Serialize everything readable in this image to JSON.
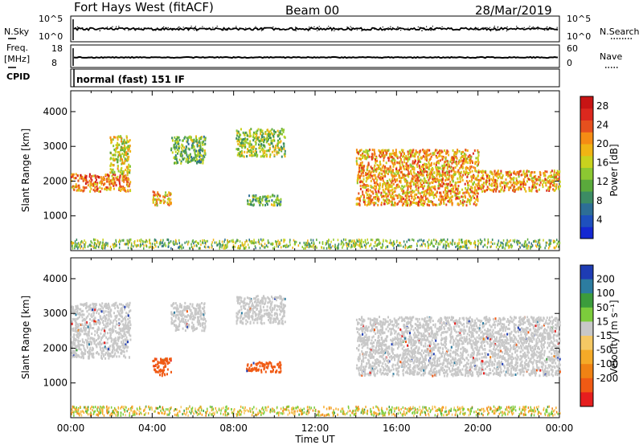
{
  "header": {
    "radar_title": "Fort Hays West (fitACF)",
    "beam": "Beam 00",
    "date": "28/Mar/2019"
  },
  "noise_panel": {
    "left_label": "N.Sky",
    "right_label": "N.Search",
    "left_ticks": [
      "10^5",
      "10^0"
    ],
    "right_ticks": [
      "10^5",
      "10^0"
    ]
  },
  "freq_panel": {
    "left_label_1": "Freq.",
    "left_label_2": "[MHz]",
    "right_label": "Nave",
    "left_ticks": [
      "18",
      "8"
    ],
    "right_ticks": [
      "60",
      "0"
    ],
    "cpid_label": "CPID"
  },
  "cpid": {
    "text": "normal (fast) 151 IF"
  },
  "x_axis": {
    "title": "Time UT",
    "ticks": [
      "00:00",
      "04:00",
      "08:00",
      "12:00",
      "16:00",
      "20:00",
      "00:00"
    ]
  },
  "colors": {
    "power": [
      "#1428d2",
      "#1e50be",
      "#2d6e96",
      "#3c8c64",
      "#5aaa3c",
      "#8cc832",
      "#c8d21e",
      "#f0b414",
      "#f58c14",
      "#e6501e",
      "#dc281e",
      "#c81414"
    ],
    "velocity_neg": [
      "#e61e1e",
      "#f05a14",
      "#f08214",
      "#f5aa28",
      "#f5c864"
    ],
    "velocity_gs": "#c8c8c8",
    "velocity_pos": [
      "#7ccc3c",
      "#3c9c3c",
      "#2c7ca0",
      "#1e3cb4"
    ]
  },
  "chart_data": [
    {
      "type": "heatmap",
      "name": "Power",
      "ylabel": "Slant Range [km]",
      "xlabel": "",
      "x_range_hours": [
        0,
        24
      ],
      "ylim": [
        0,
        4600
      ],
      "y_ticks": [
        1000,
        2000,
        3000,
        4000
      ],
      "colorbar": {
        "label": "Power [dB]",
        "ticks": [
          4,
          8,
          12,
          16,
          20,
          24,
          28
        ],
        "range": [
          0,
          30
        ]
      },
      "echo_regions": [
        {
          "t_start": 0.0,
          "t_end": 2.9,
          "range_start_km": 1700,
          "range_end_km": 2200,
          "value": 22
        },
        {
          "t_start": 1.9,
          "t_end": 2.9,
          "range_start_km": 2200,
          "range_end_km": 3300,
          "value": 16
        },
        {
          "t_start": 4.0,
          "t_end": 4.9,
          "range_start_km": 1300,
          "range_end_km": 1700,
          "value": 20
        },
        {
          "t_start": 4.9,
          "t_end": 6.6,
          "range_start_km": 2500,
          "range_end_km": 3300,
          "value": 12
        },
        {
          "t_start": 8.1,
          "t_end": 10.5,
          "range_start_km": 2700,
          "range_end_km": 3500,
          "value": 14
        },
        {
          "t_start": 8.6,
          "t_end": 10.3,
          "range_start_km": 1300,
          "range_end_km": 1600,
          "value": 12
        },
        {
          "t_start": 14.0,
          "t_end": 20.0,
          "range_start_km": 1300,
          "range_end_km": 2900,
          "value": 20
        },
        {
          "t_start": 20.0,
          "t_end": 24.0,
          "range_start_km": 1700,
          "range_end_km": 2300,
          "value": 20
        }
      ]
    },
    {
      "type": "heatmap",
      "name": "Velocity",
      "ylabel": "Slant Range [km]",
      "xlabel": "Time UT",
      "x_range_hours": [
        0,
        24
      ],
      "ylim": [
        0,
        4600
      ],
      "y_ticks": [
        1000,
        2000,
        3000,
        4000
      ],
      "colorbar": {
        "label": "Velocity [m s⁻¹]",
        "ticks": [
          200,
          100,
          50,
          15,
          -15,
          -50,
          -100,
          -200
        ],
        "range": [
          -250,
          250
        ]
      },
      "echo_regions": [
        {
          "t_start": 0.0,
          "t_end": 2.9,
          "range_start_km": 1700,
          "range_end_km": 3300,
          "value": 0
        },
        {
          "t_start": 4.0,
          "t_end": 4.9,
          "range_start_km": 1200,
          "range_end_km": 1700,
          "value": -100
        },
        {
          "t_start": 4.9,
          "t_end": 6.6,
          "range_start_km": 2500,
          "range_end_km": 3300,
          "value": 0
        },
        {
          "t_start": 8.1,
          "t_end": 10.5,
          "range_start_km": 2700,
          "range_end_km": 3500,
          "value": 0
        },
        {
          "t_start": 8.6,
          "t_end": 10.3,
          "range_start_km": 1300,
          "range_end_km": 1600,
          "value": -100
        },
        {
          "t_start": 14.0,
          "t_end": 24.0,
          "range_start_km": 1200,
          "range_end_km": 2900,
          "value": 0
        }
      ]
    }
  ]
}
